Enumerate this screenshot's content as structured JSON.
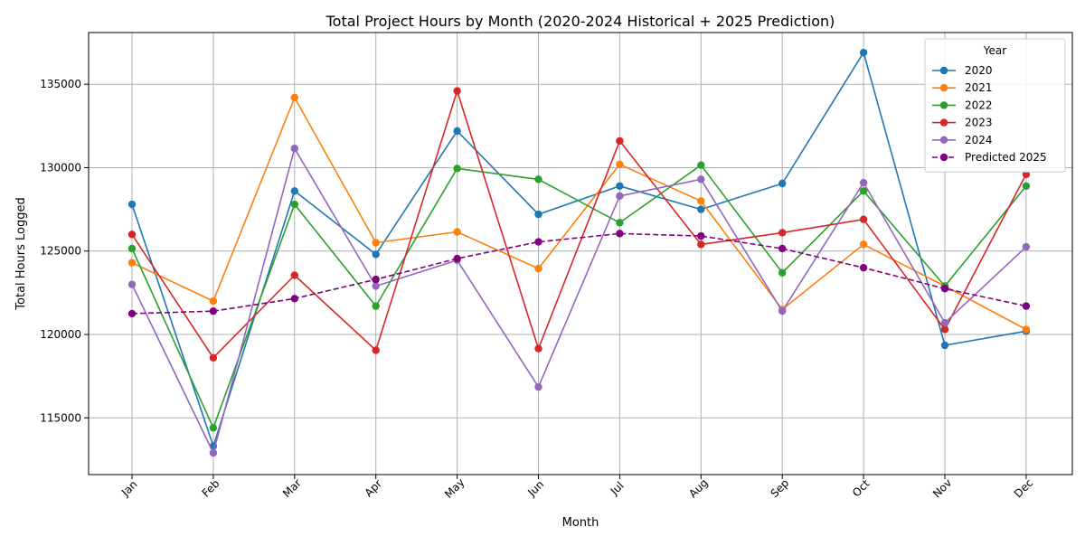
{
  "chart_data": {
    "type": "line",
    "title": "Total Project Hours by Month (2020-2024 Historical + 2025 Prediction)",
    "xlabel": "Month",
    "ylabel": "Total Hours Logged",
    "categories": [
      "Jan",
      "Feb",
      "Mar",
      "Apr",
      "May",
      "Jun",
      "Jul",
      "Aug",
      "Sep",
      "Oct",
      "Nov",
      "Dec"
    ],
    "ylim": [
      111600,
      138100
    ],
    "yticks": [
      115000,
      120000,
      125000,
      130000,
      135000
    ],
    "grid": true,
    "legend": {
      "title": "Year",
      "position": "top-right"
    },
    "series": [
      {
        "name": "2020",
        "color": "#1f77b4",
        "style": "solid",
        "values": [
          127800,
          113300,
          128600,
          124800,
          132200,
          127200,
          128900,
          127500,
          129050,
          136900,
          119350,
          120200
        ]
      },
      {
        "name": "2021",
        "color": "#ff7f0e",
        "style": "solid",
        "values": [
          124300,
          122000,
          134200,
          125500,
          126150,
          123950,
          130200,
          128000,
          121500,
          125400,
          122900,
          120300
        ]
      },
      {
        "name": "2022",
        "color": "#2ca02c",
        "style": "solid",
        "values": [
          125150,
          114400,
          127800,
          121700,
          129950,
          129300,
          126700,
          130150,
          123700,
          128600,
          122900,
          128900
        ]
      },
      {
        "name": "2023",
        "color": "#d62728",
        "style": "solid",
        "values": [
          126000,
          118600,
          123550,
          119050,
          134600,
          119150,
          131600,
          125400,
          126100,
          126900,
          120300,
          129600
        ]
      },
      {
        "name": "2024",
        "color": "#9467bd",
        "style": "solid",
        "values": [
          123000,
          112900,
          131150,
          122900,
          124450,
          116850,
          128300,
          129300,
          121400,
          129100,
          120700,
          125250
        ]
      },
      {
        "name": "Predicted 2025",
        "color": "#800080",
        "style": "dashed",
        "values": [
          121250,
          121400,
          122150,
          123300,
          124550,
          125550,
          126050,
          125900,
          125150,
          124000,
          122750,
          121700
        ]
      }
    ]
  }
}
